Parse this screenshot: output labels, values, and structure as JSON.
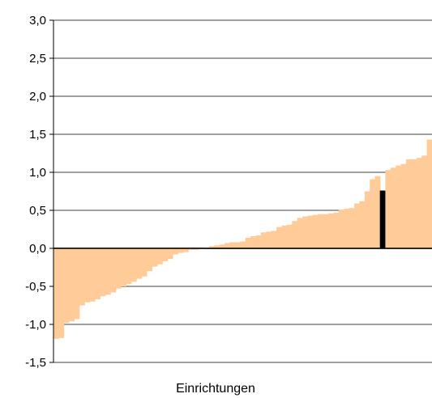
{
  "chart_data": {
    "type": "bar",
    "xlabel": "Einrichtungen",
    "ylabel": "",
    "ylim": [
      -1.5,
      3.0
    ],
    "y_ticks": [
      "3,0",
      "2,5",
      "2,0",
      "1,5",
      "1,0",
      "0,5",
      "0,0",
      "-0,5",
      "-1,0",
      "-1,5"
    ],
    "y_tick_values": [
      3.0,
      2.5,
      2.0,
      1.5,
      1.0,
      0.5,
      0.0,
      -0.5,
      -1.0,
      -1.5
    ],
    "grid": true,
    "bar_color": "#FFCC99",
    "highlight_color": "#000000",
    "highlight_index": 63,
    "values": [
      -1.19,
      -1.18,
      -0.98,
      -0.96,
      -0.93,
      -0.75,
      -0.71,
      -0.7,
      -0.67,
      -0.63,
      -0.61,
      -0.58,
      -0.53,
      -0.5,
      -0.47,
      -0.44,
      -0.4,
      -0.37,
      -0.3,
      -0.24,
      -0.21,
      -0.17,
      -0.14,
      -0.08,
      -0.06,
      -0.05,
      -0.02,
      -0.02,
      -0.01,
      0.01,
      0.03,
      0.04,
      0.05,
      0.07,
      0.08,
      0.08,
      0.09,
      0.14,
      0.16,
      0.17,
      0.21,
      0.22,
      0.23,
      0.28,
      0.3,
      0.31,
      0.36,
      0.4,
      0.42,
      0.43,
      0.44,
      0.45,
      0.45,
      0.46,
      0.47,
      0.51,
      0.52,
      0.53,
      0.59,
      0.62,
      0.75,
      0.91,
      0.95,
      0.76,
      1.03,
      1.06,
      1.09,
      1.11,
      1.17,
      1.17,
      1.19,
      1.22,
      1.43
    ]
  }
}
